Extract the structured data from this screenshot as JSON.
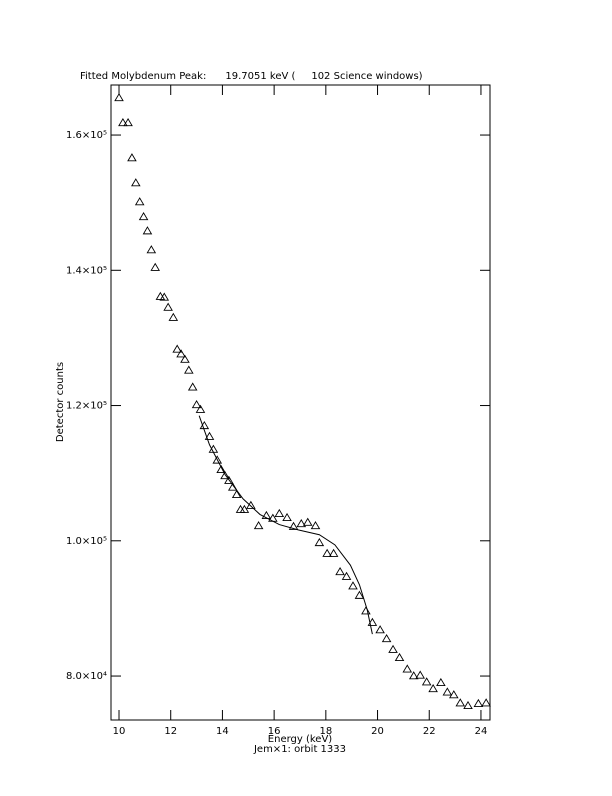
{
  "chart_data": {
    "type": "scatter",
    "title": "Fitted Molybdenum Peak:      19.7051 keV (     102 Science windows)",
    "x_label": "Energy (keV)",
    "y_label": "Detector counts",
    "annotation": "Jem×1: orbit 1333",
    "xlim": [
      9.69,
      24.35
    ],
    "ylim": [
      73500,
      167400
    ],
    "xticks": [
      10,
      12,
      14,
      16,
      18,
      20,
      22,
      24
    ],
    "yticks": [
      {
        "value": 80000,
        "label": "8.0×10⁴"
      },
      {
        "value": 100000,
        "label": "1.0×10⁵"
      },
      {
        "value": 120000,
        "label": "1.2×10⁵"
      },
      {
        "value": 140000,
        "label": "1.4×10⁵"
      },
      {
        "value": 160000,
        "label": "1.6×10⁵"
      }
    ],
    "series": [
      {
        "type": "scatter",
        "marker": "triangle",
        "color": "#000000",
        "x": [
          10.0,
          10.15,
          10.35,
          10.5,
          10.65,
          10.8,
          10.95,
          11.1,
          11.25,
          11.4,
          11.6,
          11.75,
          11.9,
          12.1,
          12.25,
          12.4,
          12.55,
          12.7,
          12.85,
          13.0,
          13.15,
          13.3,
          13.5,
          13.65,
          13.8,
          13.95,
          14.1,
          14.25,
          14.4,
          14.55,
          14.7,
          14.85,
          15.1,
          15.4,
          15.7,
          15.95,
          16.2,
          16.5,
          16.75,
          17.05,
          17.3,
          17.6,
          17.75,
          18.05,
          18.3,
          18.55,
          18.8,
          19.05,
          19.3,
          19.55,
          19.8,
          20.1,
          20.35,
          20.6,
          20.85,
          21.15,
          21.4,
          21.65,
          21.9,
          22.15,
          22.45,
          22.7,
          22.95,
          23.2,
          23.5,
          23.9,
          24.2
        ],
        "values": [
          165500,
          161800,
          161800,
          156600,
          152900,
          150100,
          147900,
          145800,
          143000,
          140400,
          136100,
          136000,
          134500,
          133000,
          128300,
          127600,
          126800,
          125200,
          122700,
          120100,
          119400,
          117000,
          115400,
          113500,
          111900,
          110500,
          109600,
          108900,
          107900,
          106800,
          104600,
          104600,
          105200,
          102200,
          103700,
          103300,
          104000,
          103400,
          102100,
          102500,
          102700,
          102200,
          99700,
          98100,
          98100,
          95400,
          94700,
          93300,
          91900,
          89600,
          87900,
          86800,
          85500,
          83900,
          82700,
          81000,
          80000,
          80100,
          79100,
          78100,
          79000,
          77600,
          77200,
          76000,
          75600,
          75900,
          76000
        ]
      },
      {
        "type": "line",
        "color": "#000000",
        "x": [
          13.1,
          13.5,
          14.1,
          14.8,
          15.45,
          16.2,
          16.95,
          17.75,
          18.35,
          18.95,
          19.3,
          19.6,
          19.8
        ],
        "values": [
          118500,
          114200,
          109800,
          106200,
          103900,
          102400,
          101600,
          100900,
          99400,
          96400,
          93500,
          89800,
          86200
        ]
      }
    ]
  }
}
